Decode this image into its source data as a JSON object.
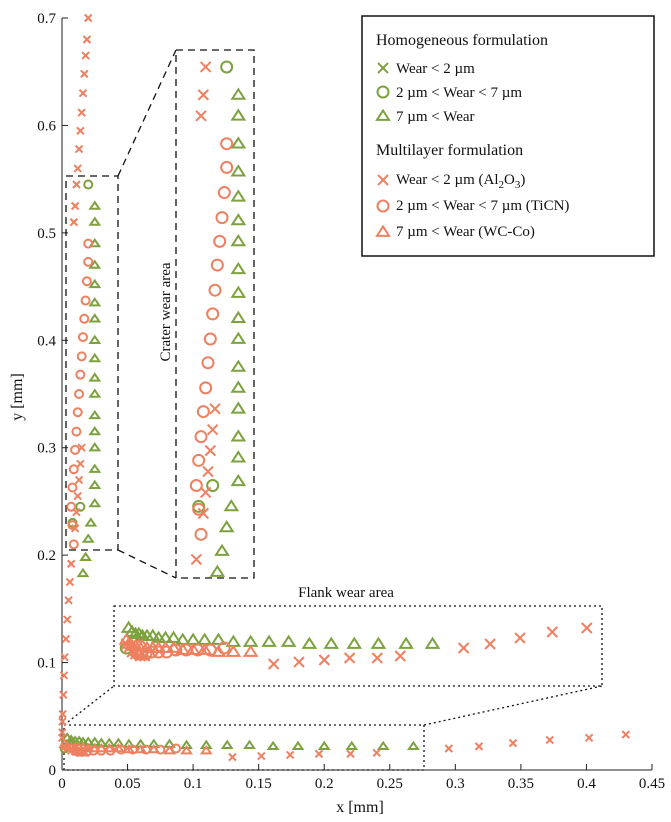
{
  "chart_data": {
    "type": "scatter",
    "xlabel": "x [mm]",
    "ylabel": "y [mm]",
    "xlim": [
      0,
      0.45
    ],
    "ylim": [
      0,
      0.7
    ],
    "x_ticks": [
      "0",
      "0.05",
      "0.1",
      "0.15",
      "0.2",
      "0.25",
      "0.3",
      "0.35",
      "0.4",
      "0.45"
    ],
    "y_ticks": [
      "0",
      "0.1",
      "0.2",
      "0.3",
      "0.4",
      "0.5",
      "0.6",
      "0.7"
    ],
    "legend": {
      "placement": "top-right",
      "group_homogeneous": "Homogeneous formulation",
      "homo_lt2": "Wear < 2 µm",
      "homo_2to7": "2 µm < Wear < 7 µm",
      "homo_gt7": "7 µm < Wear",
      "group_multilayer": "Multilayer formulation",
      "multi_lt2_prefix": "Wear < 2 µm (Al",
      "multi_lt2_sub1": "2",
      "multi_lt2_mid": "O",
      "multi_lt2_sub2": "3",
      "multi_lt2_suffix": ")",
      "multi_2to7": "2 µm < Wear < 7 µm (TiCN)",
      "multi_gt7": "7 µm < Wear (WC-Co)"
    },
    "annotations": {
      "crater": "Crater wear area",
      "flank": "Flank wear area"
    },
    "colors": {
      "homogeneous": "#7ba23f",
      "multilayer": "#ee8060"
    },
    "series": [
      {
        "name": "Homogeneous formulation — Wear < 2 µm",
        "marker": "x",
        "x": [],
        "y": []
      },
      {
        "name": "Homogeneous formulation — 2 µm < Wear < 7 µm",
        "marker": "circle",
        "x": [
          0.002,
          0.008,
          0.014,
          0.02
        ],
        "y": [
          0.02,
          0.23,
          0.245,
          0.545
        ]
      },
      {
        "name": "Homogeneous formulation — 7 µm < Wear",
        "marker": "triangle",
        "x": [
          0.025,
          0.025,
          0.025,
          0.025,
          0.025,
          0.025,
          0.025,
          0.025,
          0.025,
          0.025,
          0.025,
          0.025,
          0.025,
          0.025,
          0.025,
          0.025,
          0.025,
          0.022,
          0.02,
          0.018,
          0.016,
          0.004,
          0.007,
          0.01,
          0.013,
          0.016,
          0.02,
          0.025,
          0.03,
          0.036,
          0.043,
          0.051,
          0.06,
          0.07,
          0.082,
          0.095,
          0.11,
          0.126,
          0.143,
          0.161,
          0.18,
          0.2,
          0.221,
          0.245,
          0.268
        ],
        "y": [
          0.525,
          0.51,
          0.49,
          0.47,
          0.452,
          0.435,
          0.42,
          0.4,
          0.383,
          0.365,
          0.35,
          0.33,
          0.315,
          0.3,
          0.28,
          0.265,
          0.248,
          0.23,
          0.215,
          0.198,
          0.183,
          0.03,
          0.028,
          0.027,
          0.027,
          0.026,
          0.026,
          0.026,
          0.025,
          0.025,
          0.025,
          0.024,
          0.024,
          0.024,
          0.024,
          0.023,
          0.023,
          0.023,
          0.023,
          0.022,
          0.022,
          0.022,
          0.022,
          0.022,
          0.022
        ]
      },
      {
        "name": "Multilayer formulation — Wear < 2 µm (Al2O3)",
        "marker": "x",
        "x": [
          0.02,
          0.019,
          0.018,
          0.017,
          0.016,
          0.015,
          0.014,
          0.013,
          0.012,
          0.011,
          0.01,
          0.009,
          0.007,
          0.006,
          0.005,
          0.004,
          0.003,
          0.002,
          0.0015,
          0.001,
          0.0005,
          0.0003,
          0.0002,
          0.0001,
          0.015,
          0.014,
          0.013,
          0.012,
          0.011,
          0.01,
          0.002,
          0.004,
          0.007,
          0.01,
          0.014,
          0.018,
          0.13,
          0.152,
          0.174,
          0.196,
          0.22,
          0.24,
          0.295,
          0.318,
          0.344,
          0.372,
          0.402,
          0.43
        ],
        "y": [
          0.7,
          0.68,
          0.665,
          0.648,
          0.63,
          0.612,
          0.595,
          0.578,
          0.56,
          0.545,
          0.525,
          0.51,
          0.192,
          0.175,
          0.158,
          0.14,
          0.122,
          0.105,
          0.088,
          0.07,
          0.052,
          0.045,
          0.035,
          0.03,
          0.3,
          0.285,
          0.27,
          0.255,
          0.24,
          0.225,
          0.022,
          0.02,
          0.018,
          0.017,
          0.016,
          0.016,
          0.012,
          0.013,
          0.014,
          0.015,
          0.015,
          0.016,
          0.02,
          0.022,
          0.025,
          0.028,
          0.03,
          0.033
        ]
      },
      {
        "name": "Multilayer formulation — 2 µm < Wear < 7 µm (TiCN)",
        "marker": "circle",
        "x": [
          0.02,
          0.02,
          0.019,
          0.018,
          0.017,
          0.016,
          0.015,
          0.014,
          0.013,
          0.012,
          0.011,
          0.01,
          0.009,
          0.008,
          0.007,
          0.008,
          0.009,
          0.01,
          0.012,
          0.015,
          0.019,
          0.024,
          0.03,
          0.037,
          0.045,
          0.054,
          0.064,
          0.075,
          0.087
        ],
        "y": [
          0.49,
          0.473,
          0.455,
          0.437,
          0.42,
          0.403,
          0.385,
          0.368,
          0.35,
          0.333,
          0.315,
          0.298,
          0.28,
          0.263,
          0.245,
          0.228,
          0.21,
          0.018,
          0.017,
          0.017,
          0.017,
          0.018,
          0.018,
          0.018,
          0.019,
          0.019,
          0.019,
          0.019,
          0.02
        ]
      },
      {
        "name": "Multilayer formulation — 7 µm < Wear (WC-Co)",
        "marker": "triangle",
        "x": [
          0.002,
          0.004,
          0.007,
          0.01,
          0.013,
          0.016,
          0.02,
          0.025,
          0.03,
          0.036,
          0.043,
          0.051,
          0.06,
          0.07,
          0.082,
          0.095,
          0.11
        ],
        "y": [
          0.024,
          0.022,
          0.021,
          0.021,
          0.021,
          0.021,
          0.02,
          0.02,
          0.02,
          0.02,
          0.02,
          0.019,
          0.019,
          0.019,
          0.018,
          0.018,
          0.018
        ]
      }
    ]
  }
}
